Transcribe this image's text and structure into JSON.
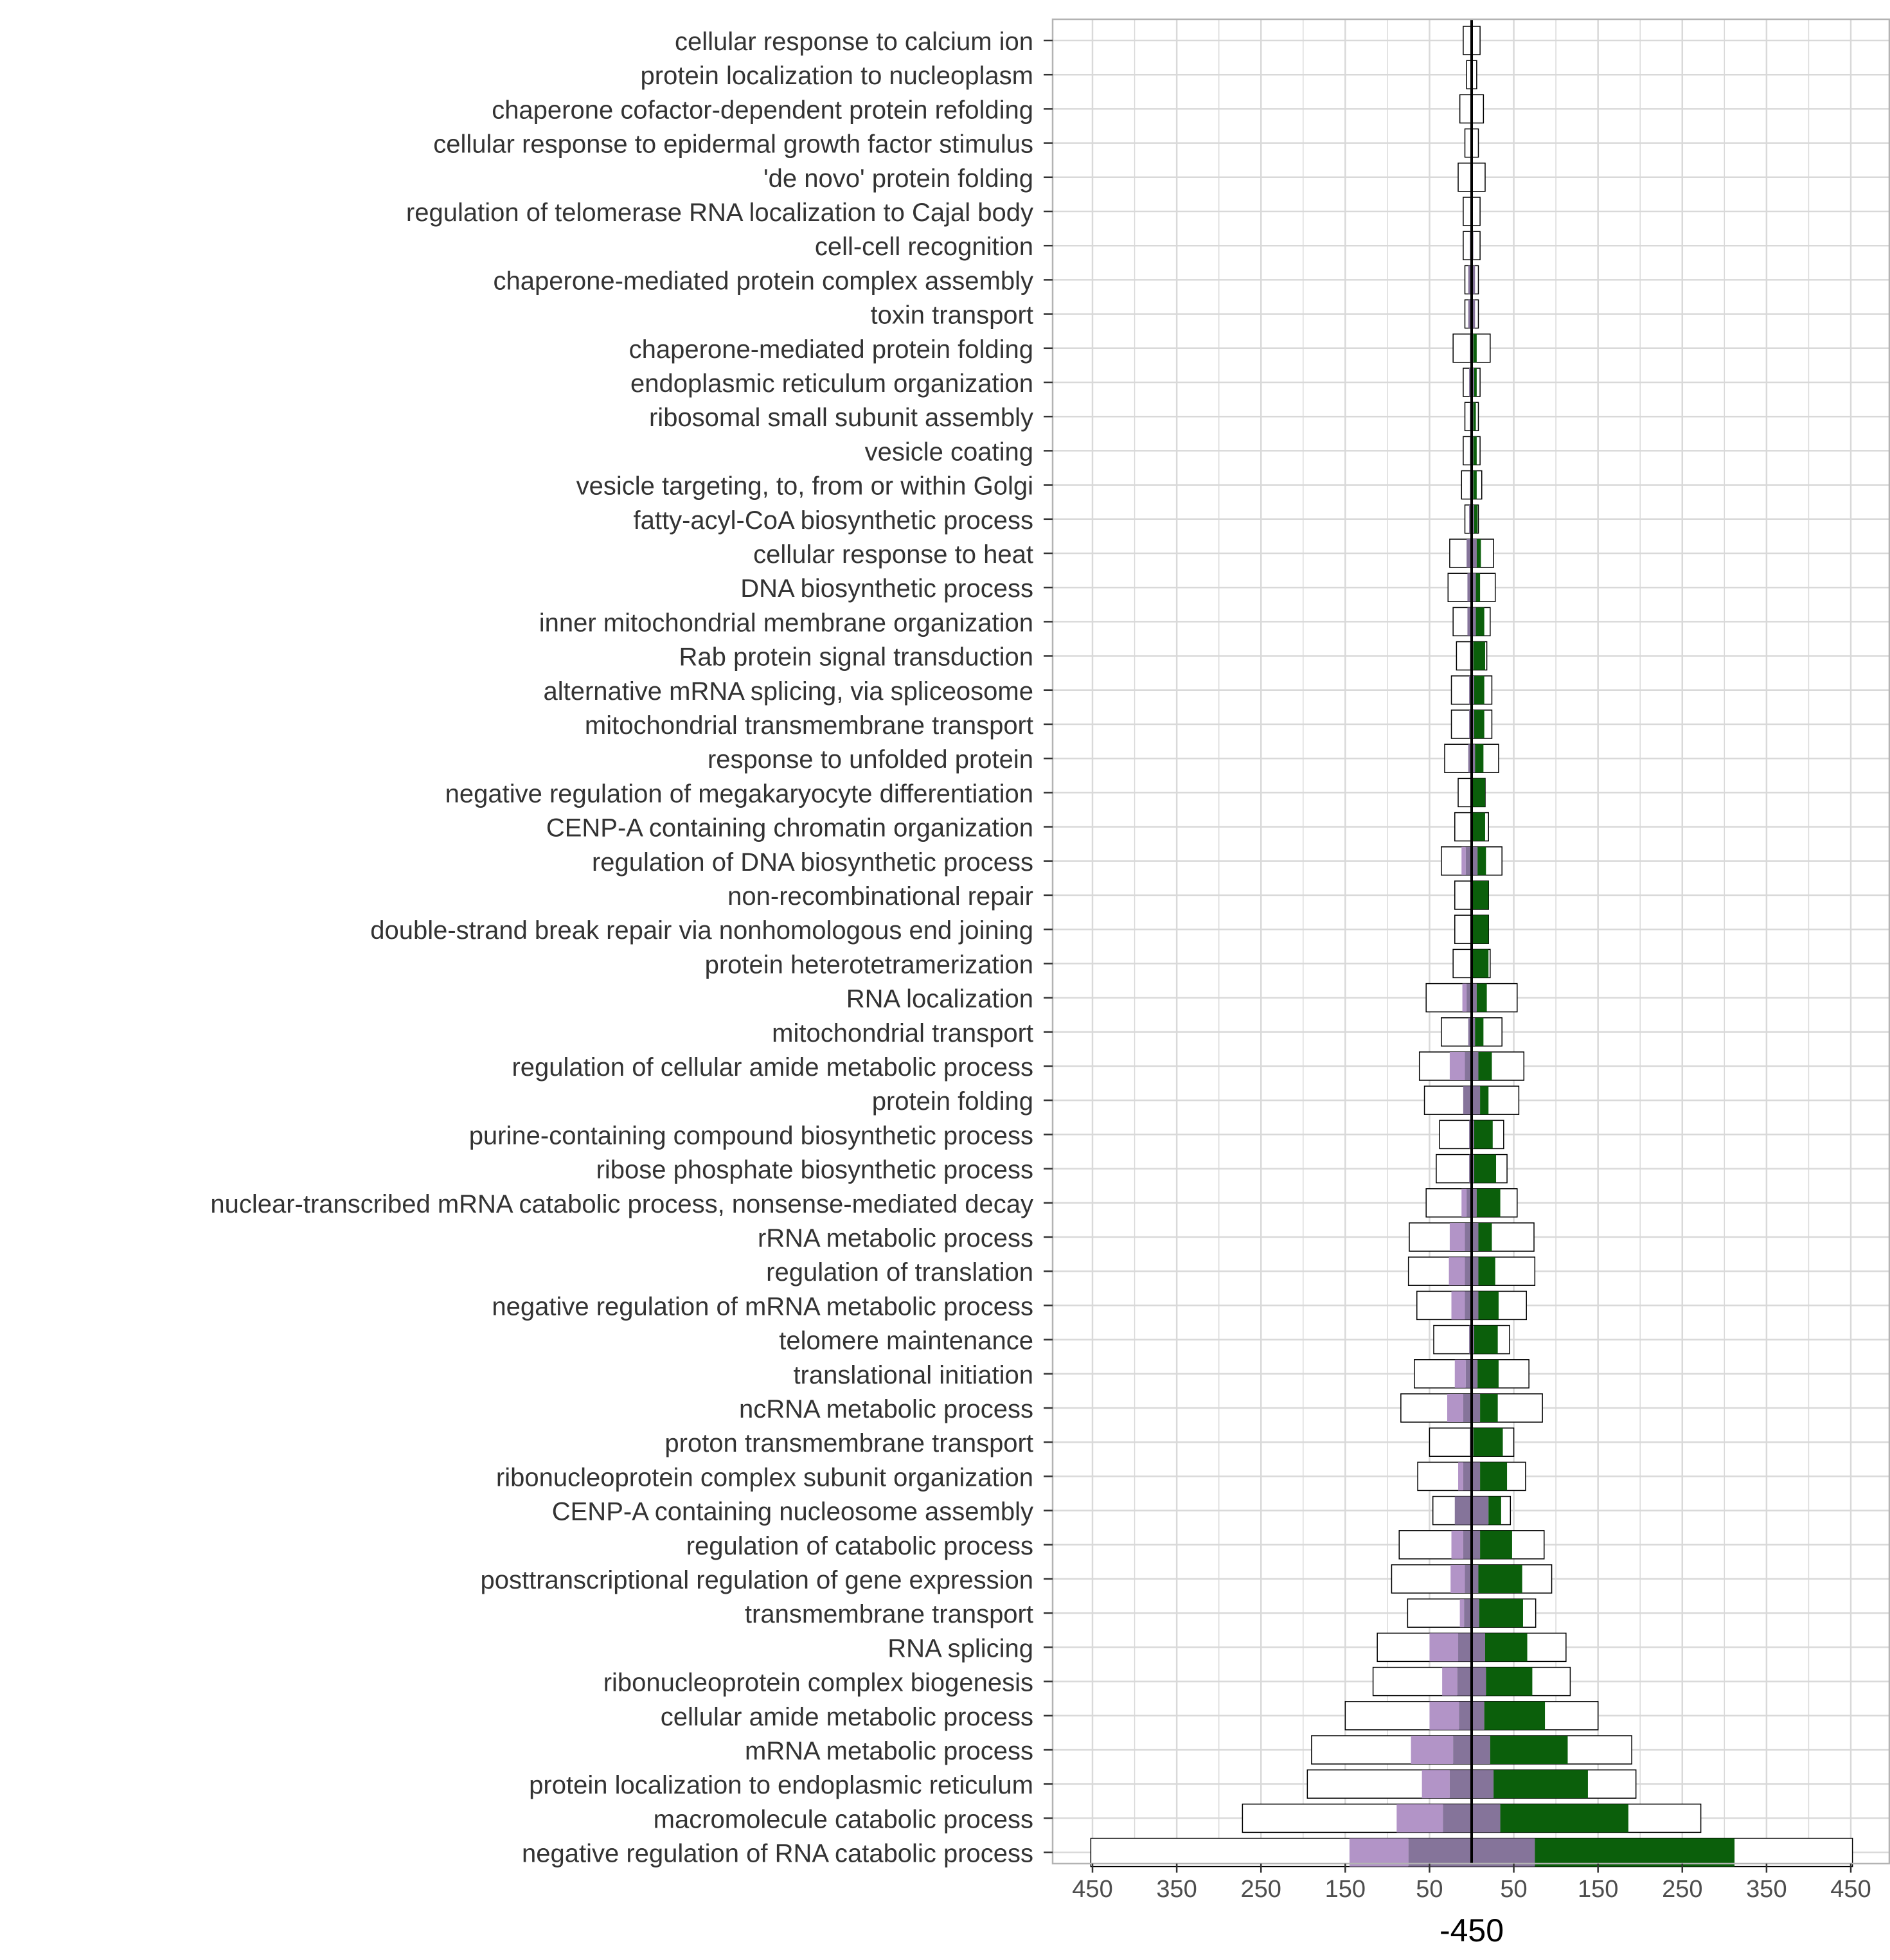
{
  "chart_data": {
    "type": "bar",
    "title": "",
    "xlabel": "-450",
    "ylabel": "",
    "xlim": [
      -450,
      450
    ],
    "x_ticks": [
      -450,
      -350,
      -250,
      -150,
      -50,
      50,
      150,
      250,
      350,
      450
    ],
    "x_tick_labels": [
      "450",
      "350",
      "250",
      "150",
      "50",
      "50",
      "150",
      "250",
      "350",
      "450"
    ],
    "grid": true,
    "legend": "none",
    "colors": {
      "left_fill": "#b294c7",
      "mid_fill": "#85749a",
      "right_fill": "#0b5f0b",
      "outline_fill": "#ffffff",
      "outline_stroke": "#000000",
      "grid": "#d9d9d9",
      "panel_border": "#b3b3b3",
      "zero_line": "#000000"
    },
    "categories": [
      "cellular response to calcium ion",
      "protein localization to nucleoplasm",
      "chaperone cofactor-dependent protein refolding",
      "cellular response to epidermal growth factor stimulus",
      "'de novo' protein folding",
      "regulation of telomerase RNA localization to Cajal body",
      "cell-cell recognition",
      "chaperone-mediated protein complex assembly",
      "toxin transport",
      "chaperone-mediated protein folding",
      "endoplasmic reticulum organization",
      "ribosomal small subunit assembly",
      "vesicle coating",
      "vesicle targeting, to, from or within Golgi",
      "fatty-acyl-CoA biosynthetic process",
      "cellular response to heat",
      "DNA biosynthetic process",
      "inner mitochondrial membrane organization",
      "Rab protein signal transduction",
      "alternative mRNA splicing, via spliceosome",
      "mitochondrial transmembrane transport",
      "response to unfolded protein",
      "negative regulation of megakaryocyte differentiation",
      "CENP-A containing chromatin organization",
      "regulation of DNA biosynthetic process",
      "non-recombinational repair",
      "double-strand break repair via nonhomologous end joining",
      "protein heterotetramerization",
      "RNA localization",
      "mitochondrial transport",
      "regulation of cellular amide metabolic process",
      "protein folding",
      "purine-containing compound biosynthetic process",
      "ribose phosphate biosynthetic process",
      "nuclear-transcribed mRNA catabolic process, nonsense-mediated decay",
      "rRNA metabolic process",
      "regulation of translation",
      "negative regulation of mRNA metabolic process",
      "telomere maintenance",
      "translational initiation",
      "ncRNA metabolic process",
      "proton transmembrane transport",
      "ribonucleoprotein complex subunit organization",
      "CENP-A containing nucleosome assembly",
      "regulation of catabolic process",
      "posttranscriptional regulation of gene expression",
      "transmembrane transport",
      "RNA splicing",
      "ribonucleoprotein complex biogenesis",
      "cellular amide metabolic process",
      "mRNA metabolic process",
      "protein localization to endoplasmic reticulum",
      "macromolecule catabolic process",
      "negative regulation of RNA catabolic process"
    ],
    "series": [
      {
        "role": "outline",
        "values": [
          10,
          6,
          14,
          8,
          16,
          10,
          10,
          8,
          8,
          22,
          10,
          8,
          10,
          12,
          8,
          26,
          28,
          22,
          18,
          24,
          24,
          32,
          16,
          20,
          36,
          20,
          20,
          22,
          54,
          36,
          62,
          56,
          38,
          42,
          54,
          74,
          75,
          65,
          45,
          68,
          84,
          50,
          64,
          46,
          86,
          95,
          76,
          112,
          117,
          150,
          190,
          195,
          272,
          452
        ]
      },
      {
        "role": "left",
        "values": [
          0,
          0,
          0,
          0,
          0,
          0,
          0,
          0,
          0,
          0,
          0,
          0,
          0,
          0,
          0,
          0,
          0,
          0,
          0,
          0,
          0,
          0,
          0,
          0,
          5,
          0,
          0,
          0,
          5,
          0,
          18,
          0,
          0,
          0,
          6,
          18,
          19,
          16,
          0,
          13,
          19,
          0,
          6,
          0,
          14,
          17,
          5,
          34,
          18,
          35,
          50,
          33,
          55,
          70
        ]
      },
      {
        "role": "mid",
        "values": [
          0,
          0,
          0,
          0,
          0,
          0,
          2,
          4,
          4,
          2,
          3,
          2,
          2,
          2,
          3,
          6,
          5,
          5,
          2,
          3,
          3,
          4,
          0,
          0,
          7,
          0,
          0,
          0,
          6,
          4,
          8,
          10,
          3,
          3,
          6,
          8,
          8,
          8,
          3,
          7,
          10,
          2,
          10,
          20,
          10,
          8,
          9,
          16,
          17,
          15,
          22,
          26,
          34,
          75
        ]
      },
      {
        "role": "right",
        "values": [
          0,
          0,
          0,
          0,
          0,
          0,
          0,
          0,
          0,
          4,
          3,
          3,
          4,
          4,
          4,
          5,
          5,
          10,
          14,
          12,
          12,
          10,
          16,
          16,
          10,
          20,
          20,
          20,
          12,
          10,
          16,
          10,
          22,
          26,
          28,
          16,
          20,
          24,
          28,
          25,
          21,
          35,
          32,
          15,
          38,
          52,
          52,
          50,
          55,
          72,
          92,
          112,
          152,
          237
        ]
      }
    ]
  }
}
